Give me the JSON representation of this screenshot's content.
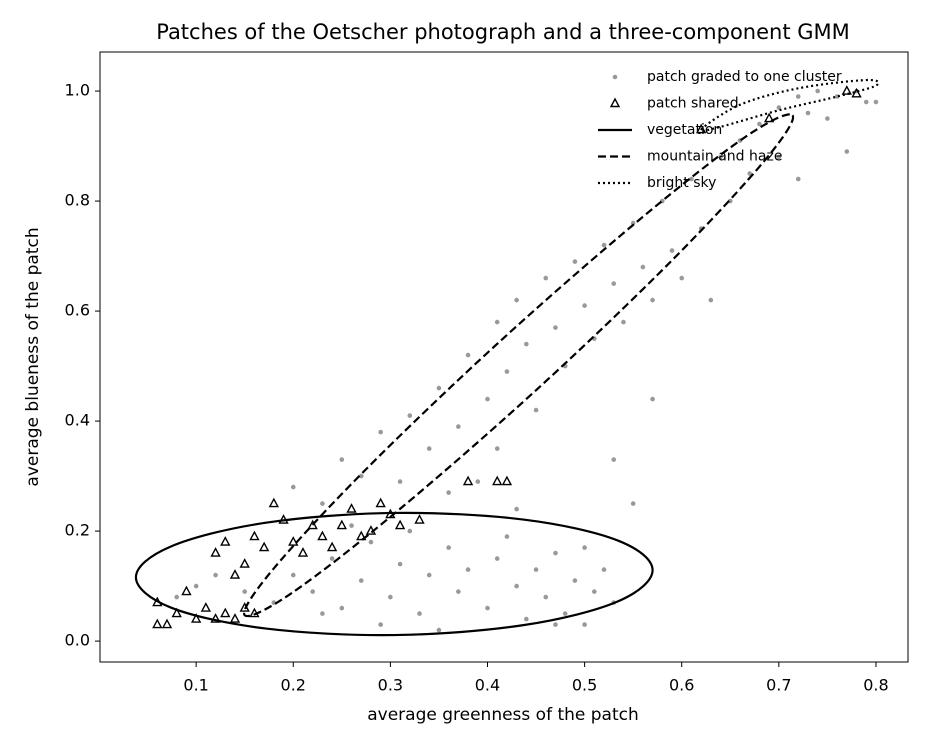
{
  "chart_data": {
    "type": "scatter",
    "title": "Patches of the Oetscher photograph and a three-component GMM",
    "x_label": "average greenness of the patch",
    "y_label": "average blueness of the patch",
    "xlim": [
      0.001,
      0.833
    ],
    "ylim": [
      -0.038,
      1.071
    ],
    "xticks": [
      0.1,
      0.2,
      0.3,
      0.4,
      0.5,
      0.6,
      0.7,
      0.8
    ],
    "yticks": [
      {
        "value": 0,
        "label": "0.0"
      },
      0.2,
      0.4,
      0.6,
      0.8,
      {
        "value": 1,
        "label": "1.0"
      }
    ],
    "legend": "upper right",
    "series": [
      {
        "name": "patch graded to one cluster",
        "kind": "points",
        "marker": "circle",
        "color": "#999999",
        "x": [
          0.08,
          0.1,
          0.12,
          0.15,
          0.18,
          0.2,
          0.22,
          0.24,
          0.25,
          0.27,
          0.28,
          0.3,
          0.31,
          0.32,
          0.33,
          0.34,
          0.36,
          0.37,
          0.38,
          0.4,
          0.41,
          0.42,
          0.43,
          0.44,
          0.45,
          0.46,
          0.47,
          0.48,
          0.49,
          0.5,
          0.51,
          0.52,
          0.5,
          0.47,
          0.53,
          0.55,
          0.35,
          0.29,
          0.26,
          0.23,
          0.2,
          0.23,
          0.25,
          0.27,
          0.29,
          0.31,
          0.32,
          0.34,
          0.35,
          0.37,
          0.38,
          0.4,
          0.41,
          0.42,
          0.43,
          0.44,
          0.45,
          0.46,
          0.47,
          0.48,
          0.49,
          0.5,
          0.51,
          0.52,
          0.53,
          0.54,
          0.55,
          0.56,
          0.57,
          0.58,
          0.59,
          0.6,
          0.61,
          0.62,
          0.63,
          0.64,
          0.65,
          0.66,
          0.67,
          0.68,
          0.7,
          0.72,
          0.43,
          0.36,
          0.41,
          0.53,
          0.57,
          0.39,
          0.7,
          0.72,
          0.74,
          0.76,
          0.78,
          0.79,
          0.8,
          0.75,
          0.77,
          0.73
        ],
        "y": [
          0.08,
          0.1,
          0.12,
          0.09,
          0.07,
          0.12,
          0.09,
          0.15,
          0.06,
          0.11,
          0.18,
          0.08,
          0.14,
          0.2,
          0.05,
          0.12,
          0.17,
          0.09,
          0.13,
          0.06,
          0.15,
          0.19,
          0.1,
          0.04,
          0.13,
          0.08,
          0.16,
          0.05,
          0.11,
          0.03,
          0.09,
          0.13,
          0.17,
          0.03,
          0.07,
          0.25,
          0.02,
          0.03,
          0.21,
          0.05,
          0.28,
          0.25,
          0.33,
          0.3,
          0.38,
          0.29,
          0.41,
          0.35,
          0.46,
          0.39,
          0.52,
          0.44,
          0.58,
          0.49,
          0.62,
          0.54,
          0.42,
          0.66,
          0.57,
          0.5,
          0.69,
          0.61,
          0.55,
          0.72,
          0.65,
          0.58,
          0.76,
          0.68,
          0.62,
          0.8,
          0.71,
          0.66,
          0.84,
          0.75,
          0.62,
          0.88,
          0.8,
          0.91,
          0.85,
          0.94,
          0.88,
          0.84,
          0.24,
          0.27,
          0.35,
          0.33,
          0.44,
          0.29,
          0.97,
          0.99,
          1.0,
          0.99,
          1.0,
          0.98,
          0.98,
          0.95,
          0.89,
          0.96
        ]
      },
      {
        "name": "patch shared",
        "kind": "points",
        "marker": "triangle",
        "color": "#000000",
        "x": [
          0.06,
          0.07,
          0.08,
          0.09,
          0.1,
          0.11,
          0.12,
          0.13,
          0.12,
          0.13,
          0.14,
          0.15,
          0.16,
          0.15,
          0.17,
          0.18,
          0.19,
          0.2,
          0.21,
          0.22,
          0.23,
          0.24,
          0.25,
          0.26,
          0.27,
          0.28,
          0.29,
          0.3,
          0.31,
          0.33,
          0.38,
          0.41,
          0.42,
          0.62,
          0.69,
          0.77,
          0.78,
          0.14,
          0.16,
          0.06
        ],
        "y": [
          0.07,
          0.03,
          0.05,
          0.09,
          0.04,
          0.06,
          0.04,
          0.05,
          0.16,
          0.18,
          0.12,
          0.14,
          0.19,
          0.06,
          0.17,
          0.25,
          0.22,
          0.18,
          0.16,
          0.21,
          0.19,
          0.17,
          0.21,
          0.24,
          0.19,
          0.2,
          0.25,
          0.23,
          0.21,
          0.22,
          0.29,
          0.29,
          0.29,
          0.93,
          0.95,
          1.0,
          0.995,
          0.04,
          0.05,
          0.03
        ]
      },
      {
        "name": "vegetation",
        "kind": "ellipse",
        "linestyle": "solid",
        "color": "#000000",
        "x": [
          0.57,
          0.534,
          0.437,
          0.304,
          0.171,
          0.074,
          0.038,
          0.074,
          0.171,
          0.304,
          0.437,
          0.534
        ],
        "y": [
          0.129,
          0.183,
          0.221,
          0.233,
          0.215,
          0.172,
          0.116,
          0.061,
          0.023,
          0.011,
          0.029,
          0.072
        ]
      },
      {
        "name": "mountain and haze",
        "kind": "ellipse",
        "linestyle": "dashed",
        "color": "#000000",
        "x": [
          0.714,
          0.686,
          0.591,
          0.453,
          0.309,
          0.199,
          0.15,
          0.178,
          0.273,
          0.411,
          0.555,
          0.665
        ],
        "y": [
          0.956,
          0.875,
          0.694,
          0.461,
          0.239,
          0.088,
          0.047,
          0.128,
          0.309,
          0.542,
          0.764,
          0.916
        ]
      },
      {
        "name": "bright sky",
        "kind": "ellipse",
        "linestyle": "dotted",
        "color": "#000000",
        "x": [
          0.62,
          0.66,
          0.72,
          0.79,
          0.8,
          0.76,
          0.7,
          0.64
        ],
        "y": [
          0.93,
          0.975,
          1.005,
          1.02,
          1.01,
          0.99,
          0.965,
          0.935
        ]
      }
    ]
  }
}
